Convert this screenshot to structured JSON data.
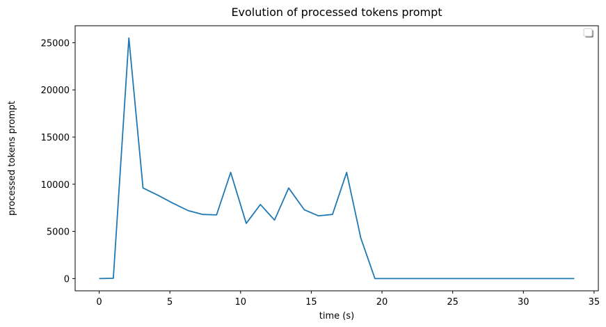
{
  "chart_data": {
    "type": "line",
    "title": "Evolution of processed tokens prompt",
    "xlabel": "time (s)",
    "ylabel": "processed tokens prompt",
    "xlim": [
      -1.7,
      35.3
    ],
    "ylim": [
      -1300,
      26800
    ],
    "xticks": [
      0,
      5,
      10,
      15,
      20,
      25,
      30,
      35
    ],
    "yticks": [
      0,
      5000,
      10000,
      15000,
      20000,
      25000
    ],
    "grid": false,
    "legend": "top-right (empty)",
    "series": [
      {
        "color": "#1f77b4",
        "x": [
          0.0,
          1.0,
          2.1,
          3.1,
          4.2,
          5.2,
          6.3,
          7.3,
          8.3,
          9.3,
          10.4,
          11.4,
          12.4,
          13.4,
          14.5,
          15.5,
          16.5,
          17.5,
          18.5,
          19.5,
          20.5,
          21.5,
          22.5,
          23.5,
          24.6,
          25.6,
          26.6,
          27.6,
          28.6,
          29.6,
          30.6,
          31.6,
          32.6,
          33.6
        ],
        "y": [
          0,
          30,
          25500,
          9600,
          8800,
          8000,
          7200,
          6800,
          6750,
          11250,
          5850,
          7850,
          6200,
          9600,
          7300,
          6650,
          6800,
          11250,
          4300,
          0,
          0,
          0,
          0,
          0,
          0,
          0,
          0,
          0,
          0,
          0,
          0,
          0,
          0,
          0
        ]
      }
    ]
  }
}
